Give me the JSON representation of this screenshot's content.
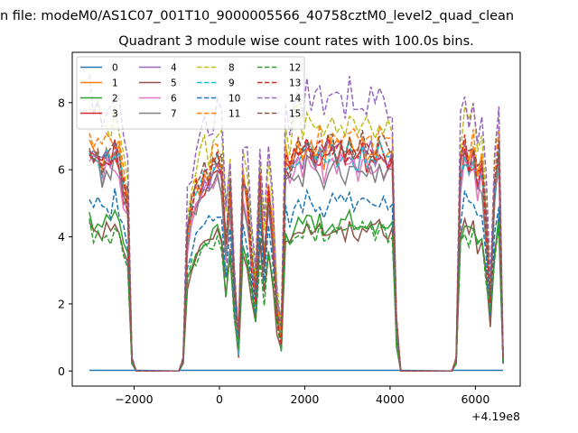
{
  "chart_data": {
    "type": "line",
    "suptitle": "n file: modeM0/AS1C07_001T10_9000005566_40758cztM0_level2_quad_clean",
    "title": "Quadrant 3 module wise count rates with 100.0s bins.",
    "xlabel": "",
    "ylabel": "",
    "x_offset_label": "+4.19e8",
    "xlim": [
      -3450,
      7050
    ],
    "ylim": [
      -0.45,
      9.5
    ],
    "x_ticks": [
      -2000,
      0,
      2000,
      4000,
      6000
    ],
    "x_tick_labels": [
      "−2000",
      "0",
      "2000",
      "4000",
      "6000"
    ],
    "y_ticks": [
      0,
      2,
      4,
      6,
      8
    ],
    "y_tick_labels": [
      "0",
      "2",
      "4",
      "6",
      "8"
    ],
    "grid": false,
    "legend_position": "top-left",
    "legend_columns": 4,
    "x_segments": [
      [
        -3050,
        -2950,
        -2850,
        -2750,
        -2650,
        -2550,
        -2450,
        -2350,
        -2250,
        -2150,
        -2050,
        -1950
      ],
      [
        -950,
        -850,
        -750,
        -650,
        -550,
        -450,
        -350,
        -250,
        -150,
        -50,
        50,
        150,
        250,
        350,
        450,
        550,
        650,
        750,
        850,
        950,
        1050,
        1150,
        1250,
        1350,
        1450,
        1550,
        1650,
        1750,
        1850,
        1950,
        2050,
        2150,
        2250,
        2350,
        2450,
        2550,
        2650,
        2750,
        2850,
        2950,
        3050,
        3150,
        3250,
        3350,
        3450,
        3550,
        3650,
        3750,
        3850,
        3950,
        4050,
        4150,
        4250
      ],
      [
        5450,
        5550,
        5650,
        5750,
        5850,
        5950,
        6050,
        6150,
        6250,
        6350,
        6450,
        6550,
        6650
      ]
    ],
    "gaps": [
      [
        -1950,
        -950
      ],
      [
        4250,
        5450
      ]
    ],
    "shape": {
      "seg1": [
        1.0,
        0.95,
        0.98,
        0.9,
        0.97,
        0.92,
        0.99,
        0.93,
        0.8,
        0.75,
        0.05,
        0.0
      ],
      "seg2": [
        0.0,
        0.05,
        0.6,
        0.72,
        0.78,
        0.8,
        0.85,
        0.84,
        0.9,
        0.92,
        0.88,
        0.55,
        0.78,
        0.4,
        0.12,
        0.82,
        0.75,
        0.5,
        0.35,
        0.82,
        0.5,
        0.78,
        0.6,
        0.3,
        0.15,
        0.92,
        0.88,
        0.95,
        0.97,
        0.93,
        0.99,
        0.96,
        0.94,
        0.98,
        0.92,
        0.97,
        1.0,
        0.95,
        0.98,
        0.94,
        1.0,
        0.96,
        0.93,
        0.99,
        0.95,
        0.97,
        0.94,
        0.98,
        0.96,
        0.95,
        0.93,
        0.2,
        0.0
      ],
      "seg3": [
        0.0,
        0.05,
        0.88,
        1.0,
        0.92,
        0.97,
        0.85,
        0.9,
        0.65,
        0.35,
        0.8,
        0.98,
        0.05
      ]
    },
    "series": [
      {
        "name": "0",
        "level": 0.02,
        "flat": true,
        "style": "solid"
      },
      {
        "name": "1",
        "level": 6.9,
        "style": "solid"
      },
      {
        "name": "2",
        "level": 4.6,
        "style": "solid"
      },
      {
        "name": "3",
        "level": 6.6,
        "style": "solid"
      },
      {
        "name": "4",
        "level": 6.7,
        "style": "solid"
      },
      {
        "name": "5",
        "level": 4.4,
        "style": "solid"
      },
      {
        "name": "6",
        "level": 6.4,
        "style": "solid"
      },
      {
        "name": "7",
        "level": 6.3,
        "style": "solid"
      },
      {
        "name": "8",
        "level": 7.8,
        "style": "dashed"
      },
      {
        "name": "9",
        "level": 6.7,
        "style": "dashed"
      },
      {
        "name": "10",
        "level": 5.2,
        "style": "dashed"
      },
      {
        "name": "11",
        "level": 7.1,
        "style": "dashed"
      },
      {
        "name": "12",
        "level": 4.3,
        "style": "dashed"
      },
      {
        "name": "13",
        "level": 6.8,
        "style": "dashed"
      },
      {
        "name": "14",
        "level": 8.4,
        "style": "dashed"
      },
      {
        "name": "15",
        "level": 6.9,
        "style": "dashed"
      }
    ],
    "colors": [
      "#1f77b4",
      "#ff7f0e",
      "#2ca02c",
      "#d62728",
      "#9467bd",
      "#8c564b",
      "#e377c2",
      "#7f7f7f",
      "#bcbd22",
      "#17becf",
      "#1f77b4",
      "#ff7f0e",
      "#2ca02c",
      "#d62728",
      "#9467bd",
      "#8c564b"
    ]
  }
}
